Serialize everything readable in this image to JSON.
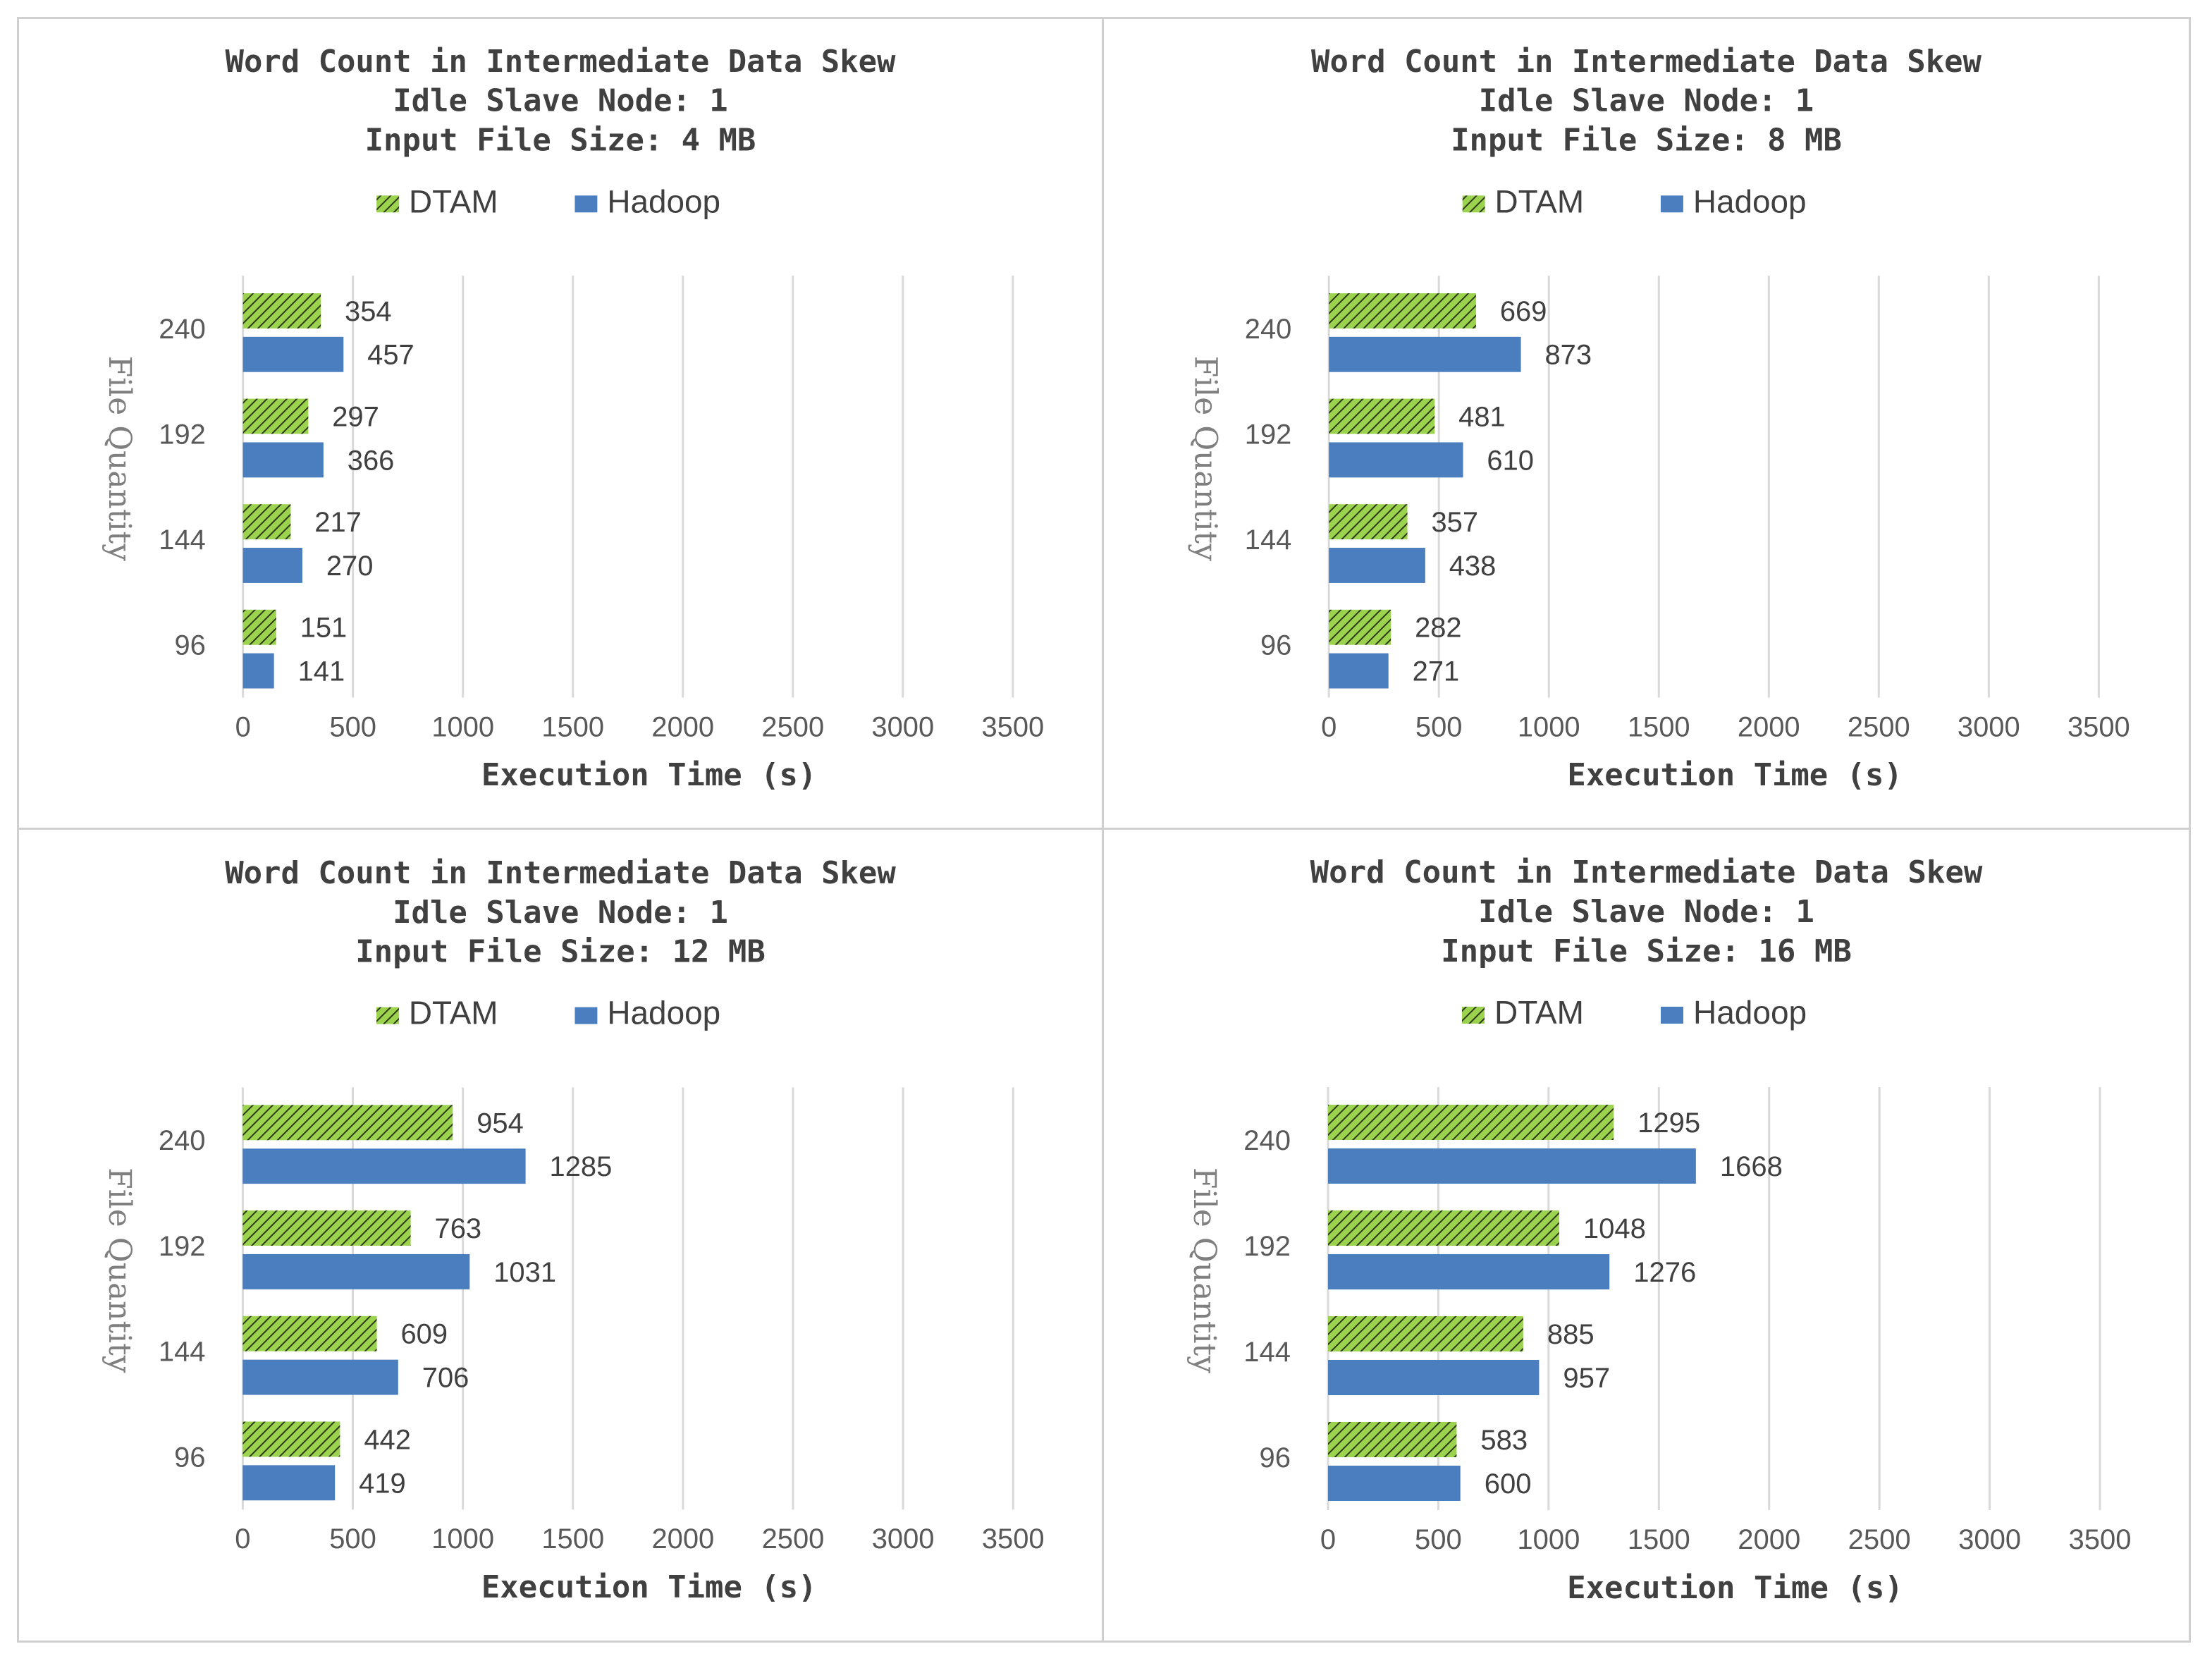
{
  "colors": {
    "dtam": "#9bd34f",
    "dtam_hatch": "#2e3a1a",
    "hadoop": "#4a7ebf",
    "grid": "#d9d9d9"
  },
  "chart_data": [
    {
      "type": "bar",
      "title_lines": [
        "Word Count in Intermediate Data Skew",
        "Idle Slave Node: 1",
        "Input File Size: 4 MB"
      ],
      "categories": [
        "240",
        "192",
        "144",
        "96"
      ],
      "series": [
        {
          "name": "DTAM",
          "values": [
            354,
            297,
            217,
            151
          ]
        },
        {
          "name": "Hadoop",
          "values": [
            457,
            366,
            270,
            141
          ]
        }
      ],
      "xlabel": "Execution Time (s)",
      "ylabel": "File Quantity",
      "xlim": [
        0,
        3500
      ],
      "xticks": [
        "0",
        "500",
        "1000",
        "1500",
        "2000",
        "2500",
        "3000",
        "3500"
      ],
      "legend": "top",
      "grid": true
    },
    {
      "type": "bar",
      "title_lines": [
        "Word Count in Intermediate Data Skew",
        "Idle Slave Node: 1",
        "Input File Size: 8 MB"
      ],
      "categories": [
        "240",
        "192",
        "144",
        "96"
      ],
      "series": [
        {
          "name": "DTAM",
          "values": [
            669,
            481,
            357,
            282
          ]
        },
        {
          "name": "Hadoop",
          "values": [
            873,
            610,
            438,
            271
          ]
        }
      ],
      "xlabel": "Execution Time (s)",
      "ylabel": "File Quantity",
      "xlim": [
        0,
        3500
      ],
      "xticks": [
        "0",
        "500",
        "1000",
        "1500",
        "2000",
        "2500",
        "3000",
        "3500"
      ],
      "legend": "top",
      "grid": true
    },
    {
      "type": "bar",
      "title_lines": [
        "Word Count in Intermediate Data Skew",
        "Idle Slave Node: 1",
        "Input File Size: 12 MB"
      ],
      "categories": [
        "240",
        "192",
        "144",
        "96"
      ],
      "series": [
        {
          "name": "DTAM",
          "values": [
            954,
            763,
            609,
            442
          ]
        },
        {
          "name": "Hadoop",
          "values": [
            1285,
            1031,
            706,
            419
          ]
        }
      ],
      "xlabel": "Execution Time (s)",
      "ylabel": "File Quantity",
      "xlim": [
        0,
        3500
      ],
      "xticks": [
        "0",
        "500",
        "1000",
        "1500",
        "2000",
        "2500",
        "3000",
        "3500"
      ],
      "legend": "top",
      "grid": true
    },
    {
      "type": "bar",
      "title_lines": [
        "Word Count in Intermediate Data Skew",
        "Idle Slave Node: 1",
        "Input File Size: 16 MB"
      ],
      "categories": [
        "240",
        "192",
        "144",
        "96"
      ],
      "series": [
        {
          "name": "DTAM",
          "values": [
            1295,
            1048,
            885,
            583
          ]
        },
        {
          "name": "Hadoop",
          "values": [
            1668,
            1276,
            957,
            600
          ]
        }
      ],
      "xlabel": "Execution Time (s)",
      "ylabel": "File Quantity",
      "xlim": [
        0,
        3500
      ],
      "xticks": [
        "0",
        "500",
        "1000",
        "1500",
        "2000",
        "2500",
        "3000",
        "3500"
      ],
      "legend": "top",
      "grid": true
    }
  ]
}
